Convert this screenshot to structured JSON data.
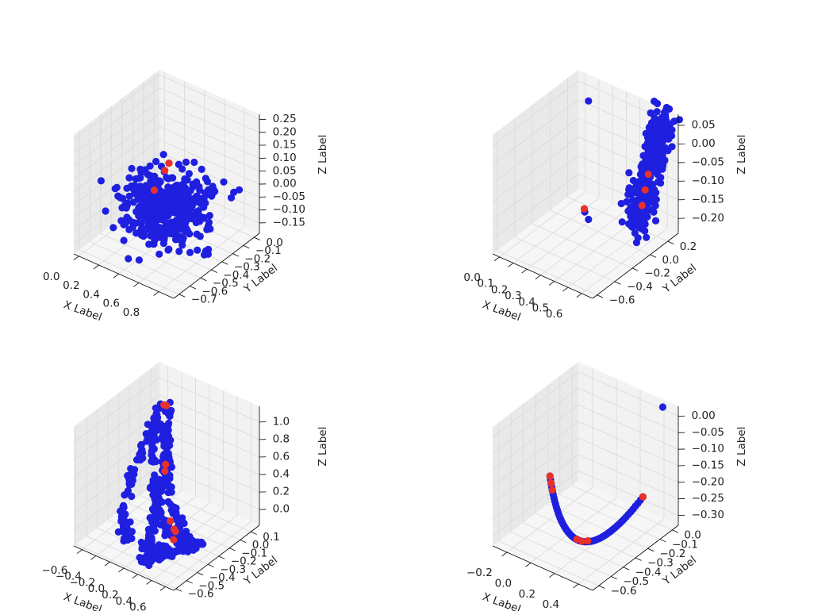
{
  "chart_data": [
    {
      "type": "scatter3d",
      "xlabel": "X Label",
      "ylabel": "Y Label",
      "zlabel": "Z Label",
      "xlim": [
        -0.05,
        0.95
      ],
      "ylim": [
        -0.75,
        0.05
      ],
      "zlim": [
        -0.19,
        0.27
      ],
      "xticks": [
        "0.0",
        "0.2",
        "0.4",
        "0.6",
        "0.8"
      ],
      "xtick_values": [
        0.0,
        0.2,
        0.4,
        0.6,
        0.8
      ],
      "yticks": [
        "−0.7",
        "−0.6",
        "−0.5",
        "−0.4",
        "−0.3",
        "−0.2",
        "−0.1",
        "0.0"
      ],
      "ytick_values": [
        -0.7,
        -0.6,
        -0.5,
        -0.4,
        -0.3,
        -0.2,
        -0.1,
        0.0
      ],
      "zticks": [
        "−0.15",
        "−0.10",
        "−0.05",
        "0.00",
        "0.05",
        "0.10",
        "0.15",
        "0.20",
        "0.25"
      ],
      "ztick_values": [
        -0.15,
        -0.1,
        -0.05,
        0.0,
        0.05,
        0.1,
        0.15,
        0.2,
        0.25
      ],
      "grid": true,
      "series": [
        {
          "color": "#1f1fe0",
          "shape": "cloud",
          "center": [
            0.45,
            -0.35,
            -0.05
          ],
          "spread": [
            0.18,
            0.12,
            0.06
          ],
          "count": 420,
          "seed": 11
        },
        {
          "color": "#e8312a",
          "points": [
            [
              0.42,
              -0.3,
              0.1
            ],
            [
              0.43,
              -0.31,
              0.105
            ],
            [
              0.38,
              -0.4,
              0.02
            ],
            [
              0.41,
              -0.33,
              0.08
            ]
          ]
        }
      ]
    },
    {
      "type": "scatter3d",
      "xlabel": "X Label",
      "ylabel": "Y Label",
      "zlabel": "Z Label",
      "xlim": [
        -0.05,
        0.68
      ],
      "ylim": [
        -0.65,
        0.32
      ],
      "zlim": [
        -0.24,
        0.08
      ],
      "xticks": [
        "0.0",
        "0.1",
        "0.2",
        "0.3",
        "0.4",
        "0.5",
        "0.6"
      ],
      "xtick_values": [
        0.0,
        0.1,
        0.2,
        0.3,
        0.4,
        0.5,
        0.6
      ],
      "yticks": [
        "−0.6",
        "−0.4",
        "−0.2",
        "0.0",
        "0.2"
      ],
      "ytick_values": [
        -0.6,
        -0.4,
        -0.2,
        0.0,
        0.2
      ],
      "zticks": [
        "−0.20",
        "−0.15",
        "−0.10",
        "−0.05",
        "0.00",
        "0.05"
      ],
      "ztick_values": [
        -0.2,
        -0.15,
        -0.1,
        -0.05,
        0.0,
        0.05
      ],
      "grid": true,
      "series": [
        {
          "color": "#1f1fe0",
          "shape": "column",
          "base": [
            0.55,
            0.05,
            -0.2
          ],
          "top": [
            0.62,
            0.22,
            0.07
          ],
          "spread": 0.035,
          "count": 360,
          "seed": 23
        },
        {
          "color": "#1f1fe0",
          "points": [
            [
              0.05,
              0.28,
              0.02
            ],
            [
              0.3,
              -0.15,
              -0.16
            ],
            [
              0.34,
              -0.17,
              -0.17
            ]
          ]
        },
        {
          "color": "#e8312a",
          "points": [
            [
              0.29,
              -0.14,
              -0.155
            ],
            [
              0.58,
              0.1,
              -0.1
            ],
            [
              0.59,
              0.12,
              -0.06
            ],
            [
              0.57,
              0.08,
              -0.14
            ]
          ]
        }
      ]
    },
    {
      "type": "scatter3d",
      "xlabel": "X Label",
      "ylabel": "Y Label",
      "zlabel": "Z Label",
      "xlim": [
        -0.72,
        0.72
      ],
      "ylim": [
        -0.62,
        0.18
      ],
      "zlim": [
        -0.18,
        1.18
      ],
      "xticks": [
        "−0.6",
        "−0.4",
        "−0.2",
        "0.0",
        "0.2",
        "0.4",
        "0.6"
      ],
      "xtick_values": [
        -0.6,
        -0.4,
        -0.2,
        0.0,
        0.2,
        0.4,
        0.6
      ],
      "yticks": [
        "−0.6",
        "−0.5",
        "−0.4",
        "−0.3",
        "−0.2",
        "−0.1",
        "0.0",
        "0.1"
      ],
      "ytick_values": [
        -0.6,
        -0.5,
        -0.4,
        -0.3,
        -0.2,
        -0.1,
        0.0,
        0.1
      ],
      "zticks": [
        "0.0",
        "0.2",
        "0.4",
        "0.6",
        "0.8",
        "1.0"
      ],
      "ztick_values": [
        0.0,
        0.2,
        0.4,
        0.6,
        0.8,
        1.0
      ],
      "grid": true,
      "series": [
        {
          "color": "#1f1fe0",
          "shape": "strands",
          "count": 520,
          "seed": 37
        },
        {
          "color": "#e8312a",
          "points": [
            [
              -0.3,
              -0.05,
              1.05
            ],
            [
              -0.28,
              -0.04,
              1.04
            ],
            [
              -0.2,
              -0.1,
              0.45
            ],
            [
              -0.18,
              -0.12,
              0.4
            ],
            [
              0.1,
              -0.25,
              0.05
            ],
            [
              0.2,
              -0.28,
              0.02
            ],
            [
              0.25,
              -0.3,
              0.03
            ],
            [
              0.3,
              -0.35,
              0.0
            ]
          ]
        }
      ]
    },
    {
      "type": "scatter3d",
      "xlabel": "X Label",
      "ylabel": "Y Label",
      "zlabel": "Z Label",
      "xlim": [
        -0.32,
        0.52
      ],
      "ylim": [
        -0.65,
        0.05
      ],
      "zlim": [
        -0.33,
        0.03
      ],
      "xticks": [
        "−0.2",
        "0.0",
        "0.2",
        "0.4"
      ],
      "xtick_values": [
        -0.2,
        0.0,
        0.2,
        0.4
      ],
      "yticks": [
        "−0.6",
        "−0.5",
        "−0.4",
        "−0.3",
        "−0.2",
        "−0.1",
        "0.0"
      ],
      "ytick_values": [
        -0.6,
        -0.5,
        -0.4,
        -0.3,
        -0.2,
        -0.1,
        0.0
      ],
      "zticks": [
        "−0.30",
        "−0.25",
        "−0.20",
        "−0.15",
        "−0.10",
        "−0.05",
        "0.00"
      ],
      "ztick_values": [
        -0.3,
        -0.25,
        -0.2,
        -0.15,
        -0.1,
        -0.05,
        0.0
      ],
      "grid": true,
      "series": [
        {
          "color": "#1f1fe0",
          "shape": "arc",
          "from": [
            -0.25,
            -0.25,
            -0.22
          ],
          "mid": [
            0.12,
            -0.35,
            -0.33
          ],
          "to": [
            0.48,
            -0.2,
            -0.18
          ],
          "count": 60
        },
        {
          "color": "#1f1fe0",
          "points": [
            [
              0.42,
              0.02,
              0.02
            ]
          ]
        },
        {
          "color": "#e8312a",
          "points": [
            [
              -0.25,
              -0.25,
              -0.22
            ],
            [
              -0.23,
              -0.26,
              -0.235
            ],
            [
              -0.21,
              -0.27,
              -0.25
            ],
            [
              0.08,
              -0.35,
              -0.33
            ],
            [
              0.12,
              -0.35,
              -0.33
            ],
            [
              0.16,
              -0.34,
              -0.325
            ],
            [
              0.48,
              -0.2,
              -0.18
            ]
          ]
        }
      ]
    }
  ]
}
